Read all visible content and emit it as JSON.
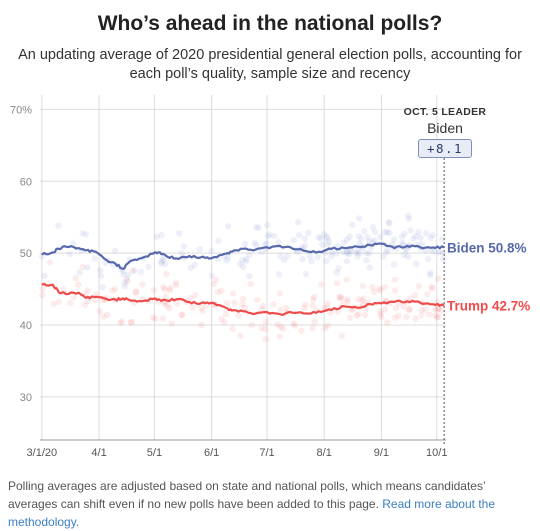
{
  "header": {
    "title": "Who’s ahead in the national polls?",
    "subtitle_line1": "An updating average of 2020 presidential general election polls, accounting for",
    "subtitle_line2": "each poll’s quality, sample size and recency"
  },
  "leader": {
    "label": "OCT. 5 LEADER",
    "name": "Biden",
    "margin": "+8.1"
  },
  "footer": {
    "text": "Polling averages are adjusted based on state and national polls, which means candidates’ averages can shift even if no new polls have been added to this page.",
    "link": "Read more about the methodology."
  },
  "colors": {
    "biden": "#5768ac",
    "trump": "#ef4b4b",
    "grid": "#dddddd"
  },
  "chart_data": {
    "type": "line",
    "ylim": [
      24,
      72
    ],
    "yticks": [
      30,
      40,
      50,
      60,
      70
    ],
    "ytick_labels": [
      "30",
      "40",
      "50",
      "60",
      "70%"
    ],
    "xlim": [
      "2020-02-29",
      "2020-10-06"
    ],
    "xticks": [
      "2020-03-01",
      "2020-04-01",
      "2020-05-01",
      "2020-06-01",
      "2020-07-01",
      "2020-08-01",
      "2020-09-01",
      "2020-10-01"
    ],
    "xtick_labels": [
      "3/1/20",
      "4/1",
      "5/1",
      "6/1",
      "7/1",
      "8/1",
      "9/1",
      "10/1"
    ],
    "marker_date": "2020-10-05",
    "series": [
      {
        "name": "Biden",
        "end_label": "Biden 50.8%",
        "color": "#5768ac",
        "x": [
          "2020-03-01",
          "2020-03-07",
          "2020-03-10",
          "2020-03-14",
          "2020-03-21",
          "2020-03-25",
          "2020-03-30",
          "2020-04-04",
          "2020-04-10",
          "2020-04-14",
          "2020-04-18",
          "2020-04-24",
          "2020-04-30",
          "2020-05-04",
          "2020-05-08",
          "2020-05-14",
          "2020-05-20",
          "2020-05-26",
          "2020-06-01",
          "2020-06-08",
          "2020-06-12",
          "2020-06-18",
          "2020-06-25",
          "2020-07-01",
          "2020-07-08",
          "2020-07-15",
          "2020-07-22",
          "2020-07-29",
          "2020-08-05",
          "2020-08-12",
          "2020-08-19",
          "2020-08-26",
          "2020-09-01",
          "2020-09-08",
          "2020-09-15",
          "2020-09-22",
          "2020-09-29",
          "2020-10-05"
        ],
        "y": [
          49.8,
          50.1,
          50.6,
          50.9,
          50.7,
          50.4,
          50.2,
          49.2,
          48.5,
          47.8,
          48.9,
          49.3,
          49.9,
          50.1,
          49.5,
          49.2,
          49.6,
          49.4,
          49.3,
          49.9,
          50.2,
          50.6,
          50.5,
          50.8,
          51.0,
          50.6,
          50.3,
          50.2,
          50.6,
          50.7,
          50.9,
          51.1,
          51.3,
          50.7,
          51.0,
          50.8,
          50.8,
          50.8
        ]
      },
      {
        "name": "Trump",
        "end_label": "Trump 42.7%",
        "color": "#ef4b4b",
        "x": [
          "2020-03-01",
          "2020-03-07",
          "2020-03-10",
          "2020-03-14",
          "2020-03-21",
          "2020-03-25",
          "2020-03-30",
          "2020-04-04",
          "2020-04-10",
          "2020-04-14",
          "2020-04-18",
          "2020-04-24",
          "2020-04-30",
          "2020-05-04",
          "2020-05-08",
          "2020-05-14",
          "2020-05-20",
          "2020-05-26",
          "2020-06-01",
          "2020-06-08",
          "2020-06-12",
          "2020-06-18",
          "2020-06-25",
          "2020-07-01",
          "2020-07-08",
          "2020-07-15",
          "2020-07-22",
          "2020-07-29",
          "2020-08-05",
          "2020-08-12",
          "2020-08-19",
          "2020-08-26",
          "2020-09-01",
          "2020-09-08",
          "2020-09-15",
          "2020-09-22",
          "2020-09-29",
          "2020-10-05"
        ],
        "y": [
          45.6,
          45.6,
          44.6,
          44.3,
          44.5,
          43.8,
          43.9,
          43.7,
          43.5,
          43.7,
          43.4,
          43.3,
          43.6,
          43.5,
          43.4,
          43.6,
          43.2,
          43.0,
          43.1,
          42.5,
          42.0,
          41.9,
          41.6,
          41.8,
          41.5,
          41.7,
          41.6,
          41.9,
          42.1,
          42.6,
          42.4,
          42.9,
          43.0,
          43.2,
          43.3,
          43.1,
          42.9,
          42.7
        ]
      }
    ]
  }
}
